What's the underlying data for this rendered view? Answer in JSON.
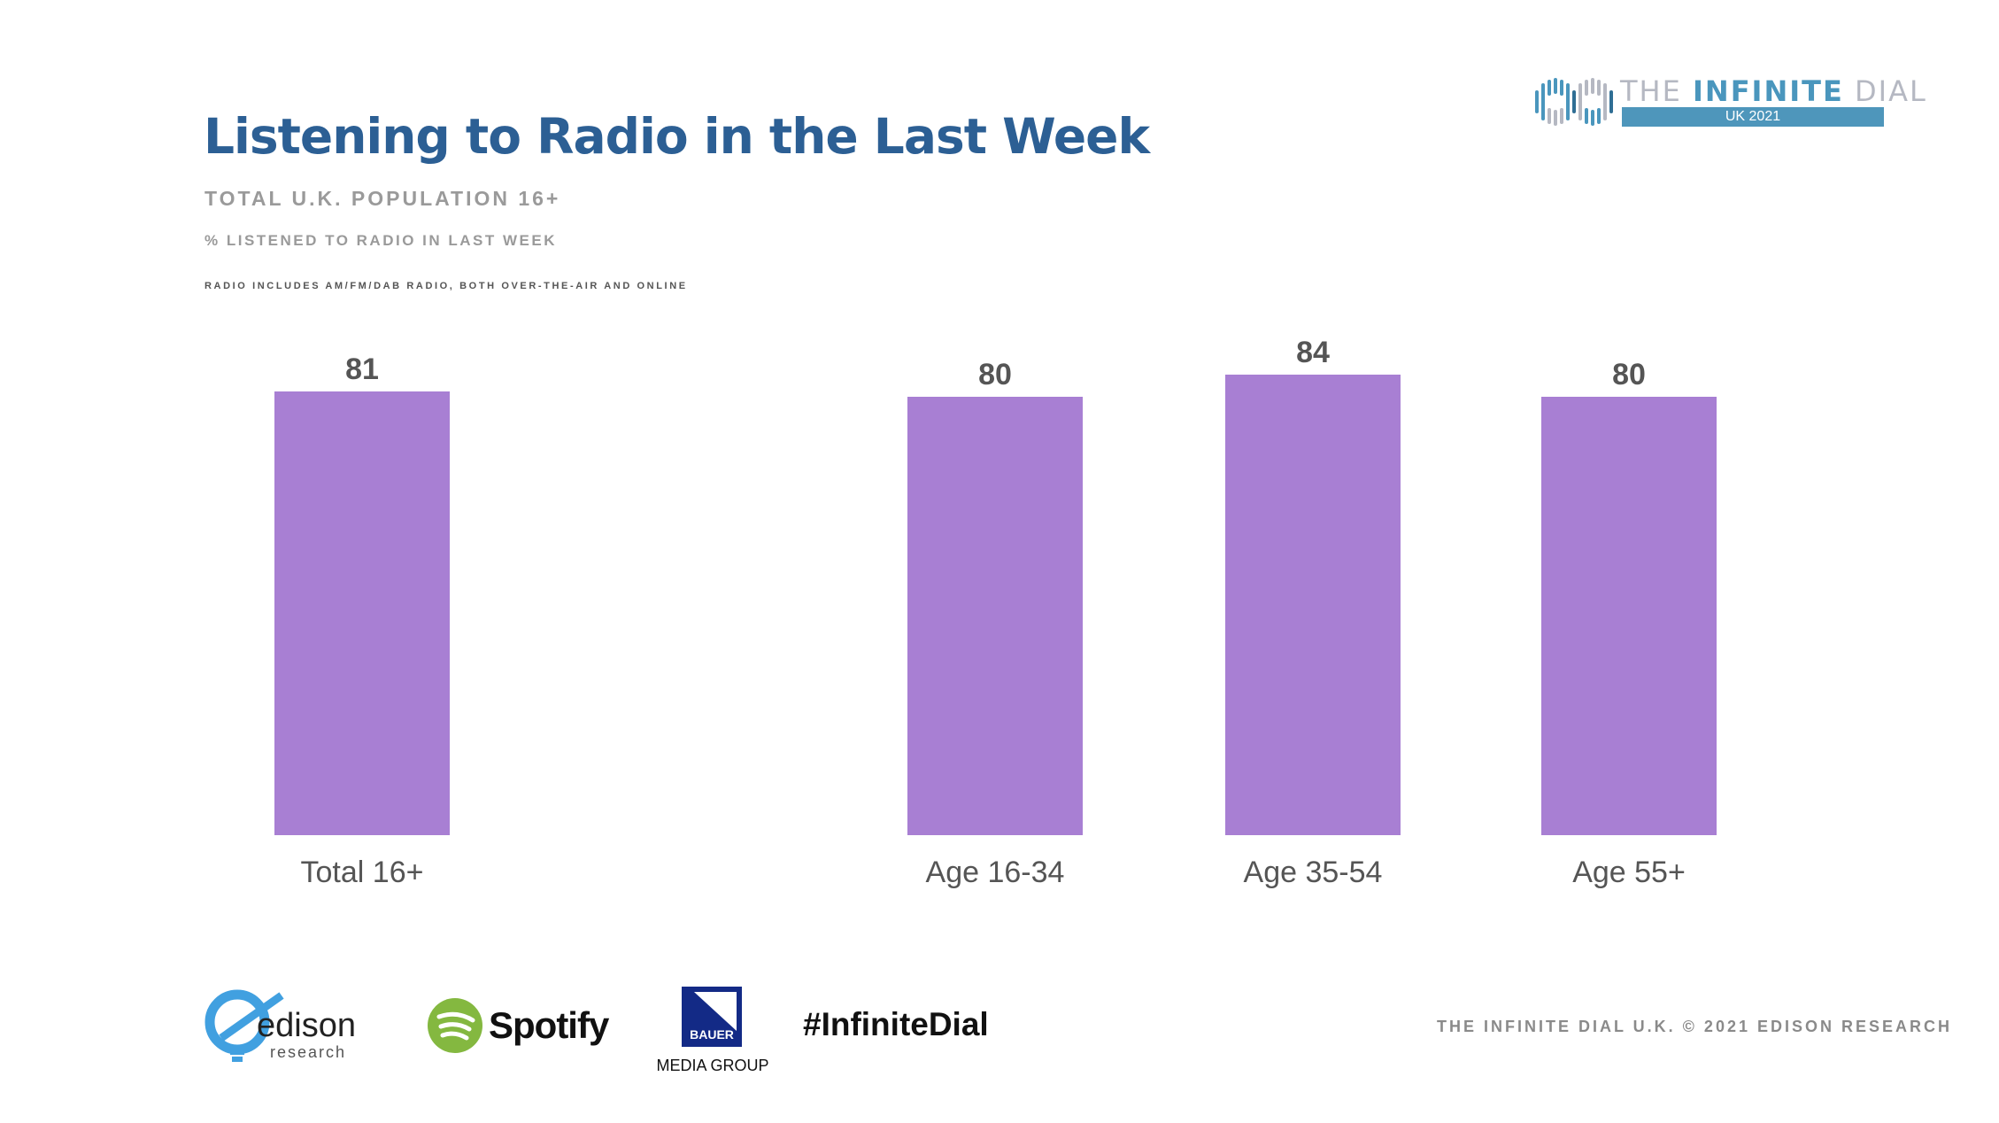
{
  "title": "Listening to Radio in the Last Week",
  "subtitle": "TOTAL U.K. POPULATION 16+",
  "measure": "% LISTENED TO RADIO IN LAST WEEK",
  "note": "RADIO INCLUDES AM/FM/DAB RADIO, BOTH OVER-THE-AIR AND ONLINE",
  "logo": {
    "the": "THE",
    "infinite": "INFINITE",
    "dial": "DIAL",
    "edition": "UK 2021"
  },
  "footer": {
    "edison": "edison",
    "edison_sub": "research",
    "spotify": "Spotify",
    "bauer": "BAUER",
    "bauer_sub": "MEDIA GROUP",
    "hashtag": "#InfiniteDial",
    "copyright": "THE INFINITE DIAL U.K.  © 2021 EDISON RESEARCH"
  },
  "colors": {
    "bar": "#a87fd3",
    "title": "#2c5f94"
  },
  "chart_data": {
    "type": "bar",
    "categories": [
      "Total 16+",
      "Age 16-34",
      "Age 35-54",
      "Age 55+"
    ],
    "values": [
      81,
      80,
      84,
      80
    ],
    "value_labels": [
      "81",
      "80",
      "84",
      "80"
    ],
    "ylim": [
      0,
      100
    ],
    "grid": false
  }
}
